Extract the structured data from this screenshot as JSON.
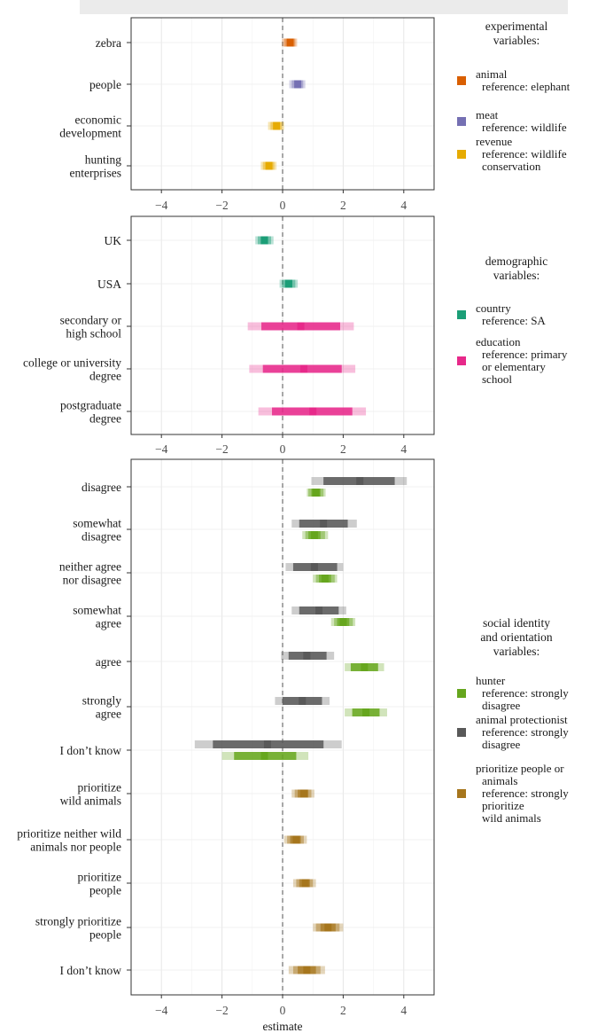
{
  "chart_data": [
    {
      "type": "interval",
      "panel": "experimental",
      "xlabel": "",
      "xlim": [
        -5,
        5
      ],
      "xticks": [
        "−4",
        "−2",
        "0",
        "2",
        "4"
      ],
      "reference_line": 0,
      "rows": [
        {
          "label": [
            "zebra"
          ],
          "series": [
            {
              "group": "animal",
              "est": 0.25,
              "ci50": [
                0.15,
                0.35
              ],
              "ci80": [
                0.05,
                0.42
              ],
              "ci95": [
                -0.02,
                0.48
              ]
            }
          ]
        },
        {
          "label": [
            "people"
          ],
          "series": [
            {
              "group": "meat",
              "est": 0.5,
              "ci50": [
                0.4,
                0.6
              ],
              "ci80": [
                0.3,
                0.68
              ],
              "ci95": [
                0.22,
                0.75
              ]
            }
          ]
        },
        {
          "label": [
            "economic",
            "development"
          ],
          "series": [
            {
              "group": "revenue",
              "est": -0.2,
              "ci50": [
                -0.3,
                -0.1
              ],
              "ci80": [
                -0.4,
                -0.02
              ],
              "ci95": [
                -0.48,
                0.05
              ]
            }
          ]
        },
        {
          "label": [
            "hunting",
            "enterprises"
          ],
          "series": [
            {
              "group": "revenue",
              "est": -0.45,
              "ci50": [
                -0.55,
                -0.35
              ],
              "ci80": [
                -0.65,
                -0.27
              ],
              "ci95": [
                -0.72,
                -0.2
              ]
            }
          ]
        }
      ],
      "legend": {
        "title": [
          "experimental",
          "variables:"
        ],
        "entries": [
          {
            "key": "animal",
            "color": "#d95f02",
            "lines": [
              "animal",
              "reference: elephant"
            ]
          },
          {
            "key": "meat",
            "color": "#7570b3",
            "lines": [
              "meat",
              "reference: wildlife"
            ]
          },
          {
            "key": "revenue",
            "color": "#e6ab02",
            "lines": [
              "revenue",
              "reference: wildlife",
              "conservation"
            ]
          }
        ]
      }
    },
    {
      "type": "interval",
      "panel": "demographic",
      "xlabel": "",
      "xlim": [
        -5,
        5
      ],
      "xticks": [
        "−4",
        "−2",
        "0",
        "2",
        "4"
      ],
      "reference_line": 0,
      "rows": [
        {
          "label": [
            "UK"
          ],
          "series": [
            {
              "group": "country",
              "est": -0.6,
              "ci50": [
                -0.72,
                -0.48
              ],
              "ci80": [
                -0.82,
                -0.38
              ],
              "ci95": [
                -0.9,
                -0.3
              ]
            }
          ]
        },
        {
          "label": [
            "USA"
          ],
          "series": [
            {
              "group": "country",
              "est": 0.2,
              "ci50": [
                0.08,
                0.32
              ],
              "ci80": [
                -0.02,
                0.42
              ],
              "ci95": [
                -0.1,
                0.5
              ]
            }
          ]
        },
        {
          "label": [
            "secondary or",
            "high school"
          ],
          "series": [
            {
              "group": "education",
              "est": 0.6,
              "ci50": [
                -0.7,
                1.9
              ],
              "ci80": [
                -0.7,
                1.9
              ],
              "ci95": [
                -1.15,
                2.35
              ]
            }
          ]
        },
        {
          "label": [
            "college or university",
            "degree"
          ],
          "series": [
            {
              "group": "education",
              "est": 0.7,
              "ci50": [
                -0.65,
                1.95
              ],
              "ci80": [
                -0.65,
                1.95
              ],
              "ci95": [
                -1.1,
                2.4
              ]
            }
          ]
        },
        {
          "label": [
            "postgraduate",
            "degree"
          ],
          "series": [
            {
              "group": "education",
              "est": 1.0,
              "ci50": [
                -0.35,
                2.3
              ],
              "ci80": [
                -0.35,
                2.3
              ],
              "ci95": [
                -0.8,
                2.75
              ]
            }
          ]
        }
      ],
      "legend": {
        "title": [
          "demographic",
          "variables:"
        ],
        "entries": [
          {
            "key": "country",
            "color": "#1b9e77",
            "lines": [
              "country",
              "reference: SA"
            ]
          },
          {
            "key": "education",
            "color": "#e7298a",
            "lines": [
              "education",
              "reference: primary",
              "or elementary",
              "school"
            ]
          }
        ]
      }
    },
    {
      "type": "interval",
      "panel": "social identity and orientation",
      "xlabel": "estimate",
      "xlim": [
        -5,
        5
      ],
      "xticks": [
        "−4",
        "−2",
        "0",
        "2",
        "4"
      ],
      "reference_line": 0,
      "rows": [
        {
          "label": [
            "disagree"
          ],
          "series": [
            {
              "group": "animal_protectionist",
              "est": 2.55,
              "ci50": [
                1.35,
                3.7
              ],
              "ci80": [
                1.35,
                3.7
              ],
              "ci95": [
                0.95,
                4.1
              ]
            },
            {
              "group": "hunter",
              "est": 1.1,
              "ci50": [
                0.95,
                1.25
              ],
              "ci80": [
                0.85,
                1.35
              ],
              "ci95": [
                0.8,
                1.42
              ]
            }
          ]
        },
        {
          "label": [
            "somewhat",
            "disagree"
          ],
          "series": [
            {
              "group": "animal_protectionist",
              "est": 1.35,
              "ci50": [
                0.55,
                2.15
              ],
              "ci80": [
                0.55,
                2.15
              ],
              "ci95": [
                0.3,
                2.45
              ]
            },
            {
              "group": "hunter",
              "est": 1.05,
              "ci50": [
                0.85,
                1.25
              ],
              "ci80": [
                0.75,
                1.4
              ],
              "ci95": [
                0.65,
                1.5
              ]
            }
          ]
        },
        {
          "label": [
            "neither agree",
            "nor disagree"
          ],
          "series": [
            {
              "group": "animal_protectionist",
              "est": 1.05,
              "ci50": [
                0.35,
                1.8
              ],
              "ci80": [
                0.35,
                1.8
              ],
              "ci95": [
                0.1,
                2.0
              ]
            },
            {
              "group": "hunter",
              "est": 1.4,
              "ci50": [
                1.2,
                1.6
              ],
              "ci80": [
                1.1,
                1.72
              ],
              "ci95": [
                1.0,
                1.8
              ]
            }
          ]
        },
        {
          "label": [
            "somewhat",
            "agree"
          ],
          "series": [
            {
              "group": "animal_protectionist",
              "est": 1.2,
              "ci50": [
                0.55,
                1.85
              ],
              "ci80": [
                0.55,
                1.85
              ],
              "ci95": [
                0.3,
                2.1
              ]
            },
            {
              "group": "hunter",
              "est": 2.0,
              "ci50": [
                1.8,
                2.2
              ],
              "ci80": [
                1.7,
                2.32
              ],
              "ci95": [
                1.6,
                2.4
              ]
            }
          ]
        },
        {
          "label": [
            "agree"
          ],
          "series": [
            {
              "group": "animal_protectionist",
              "est": 0.8,
              "ci50": [
                0.2,
                1.45
              ],
              "ci80": [
                0.2,
                1.45
              ],
              "ci95": [
                -0.05,
                1.7
              ]
            },
            {
              "group": "hunter",
              "est": 2.7,
              "ci50": [
                2.25,
                3.15
              ],
              "ci80": [
                2.25,
                3.15
              ],
              "ci95": [
                2.05,
                3.35
              ]
            }
          ]
        },
        {
          "label": [
            "strongly",
            "agree"
          ],
          "series": [
            {
              "group": "animal_protectionist",
              "est": 0.65,
              "ci50": [
                0.0,
                1.3
              ],
              "ci80": [
                0.0,
                1.3
              ],
              "ci95": [
                -0.25,
                1.55
              ]
            },
            {
              "group": "hunter",
              "est": 2.75,
              "ci50": [
                2.3,
                3.2
              ],
              "ci80": [
                2.3,
                3.2
              ],
              "ci95": [
                2.05,
                3.45
              ]
            }
          ]
        },
        {
          "label": [
            "I don’t know"
          ],
          "series": [
            {
              "group": "animal_protectionist",
              "est": -0.5,
              "ci50": [
                -2.3,
                1.35
              ],
              "ci80": [
                -2.3,
                1.35
              ],
              "ci95": [
                -2.9,
                1.95
              ]
            },
            {
              "group": "hunter",
              "est": -0.6,
              "ci50": [
                -1.6,
                0.45
              ],
              "ci80": [
                -1.6,
                0.45
              ],
              "ci95": [
                -2.0,
                0.85
              ]
            }
          ]
        },
        {
          "label": [
            "prioritize",
            "wild animals"
          ],
          "series": [
            {
              "group": "prioritize",
              "est": 0.7,
              "ci50": [
                0.5,
                0.85
              ],
              "ci80": [
                0.4,
                0.95
              ],
              "ci95": [
                0.3,
                1.05
              ]
            }
          ]
        },
        {
          "label": [
            "prioritize neither wild",
            "animals nor people"
          ],
          "series": [
            {
              "group": "prioritize",
              "est": 0.45,
              "ci50": [
                0.25,
                0.6
              ],
              "ci80": [
                0.15,
                0.7
              ],
              "ci95": [
                0.05,
                0.8
              ]
            }
          ]
        },
        {
          "label": [
            "prioritize",
            "people"
          ],
          "series": [
            {
              "group": "prioritize",
              "est": 0.75,
              "ci50": [
                0.55,
                0.9
              ],
              "ci80": [
                0.45,
                1.0
              ],
              "ci95": [
                0.35,
                1.1
              ]
            }
          ]
        },
        {
          "label": [
            "strongly prioritize",
            "people"
          ],
          "series": [
            {
              "group": "prioritize",
              "est": 1.5,
              "ci50": [
                1.25,
                1.75
              ],
              "ci80": [
                1.1,
                1.88
              ],
              "ci95": [
                1.0,
                2.0
              ]
            }
          ]
        },
        {
          "label": [
            "I don’t know"
          ],
          "series": [
            {
              "group": "prioritize",
              "est": 0.8,
              "ci50": [
                0.5,
                1.1
              ],
              "ci80": [
                0.35,
                1.25
              ],
              "ci95": [
                0.2,
                1.4
              ]
            }
          ]
        }
      ],
      "legend": {
        "title": [
          "social identity",
          "and orientation",
          "variables:"
        ],
        "entries": [
          {
            "key": "hunter",
            "color": "#66a61e",
            "lines": [
              "hunter",
              "reference: strongly",
              "disagree"
            ]
          },
          {
            "key": "animal_protectionist",
            "color": "#595959",
            "lines": [
              "animal protectionist",
              "reference: strongly",
              "disagree"
            ]
          },
          {
            "key": "prioritize",
            "color": "#a6761d",
            "lines": [
              "prioritize people or",
              "animals",
              "reference: strongly",
              "prioritize",
              "wild animals"
            ]
          }
        ]
      }
    }
  ]
}
